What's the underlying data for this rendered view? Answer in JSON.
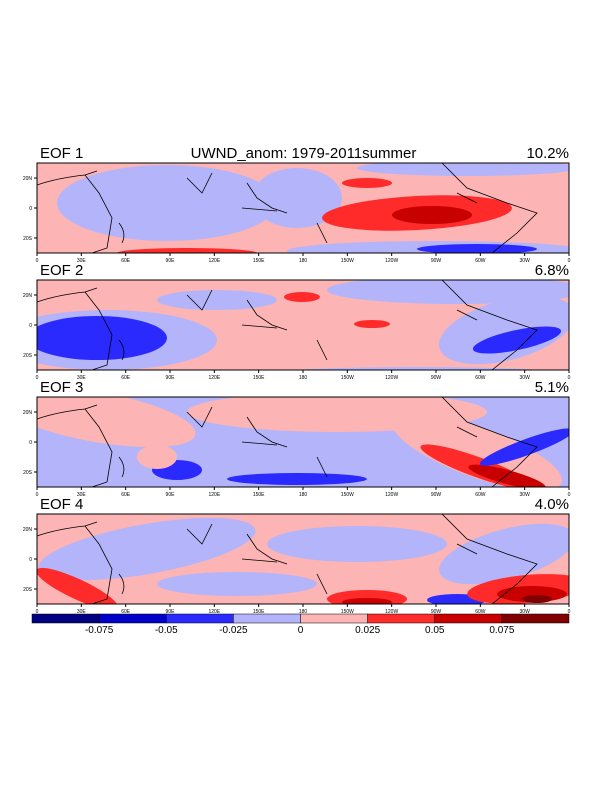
{
  "title": "UWND_anom: 1979-2011summer",
  "panels": [
    {
      "label": "EOF 1",
      "variance": "10.2%"
    },
    {
      "label": "EOF 2",
      "variance": "6.8%"
    },
    {
      "label": "EOF 3",
      "variance": "5.1%"
    },
    {
      "label": "EOF 4",
      "variance": "4.0%"
    }
  ],
  "lat_ticks": [
    "20N",
    "0",
    "20S"
  ],
  "lon_ticks": [
    "0",
    "30E",
    "60E",
    "90E",
    "120E",
    "150E",
    "180",
    "150W",
    "120W",
    "90W",
    "60W",
    "30W",
    "0"
  ],
  "colorbar": {
    "labels": [
      "-0.075",
      "-0.05",
      "-0.025",
      "0",
      "0.025",
      "0.05",
      "0.075"
    ],
    "colors": [
      "#000080",
      "#0000c8",
      "#2a2aff",
      "#b4b4fa",
      "#fcb4b4",
      "#ff2a2a",
      "#c80000",
      "#800000"
    ]
  }
}
